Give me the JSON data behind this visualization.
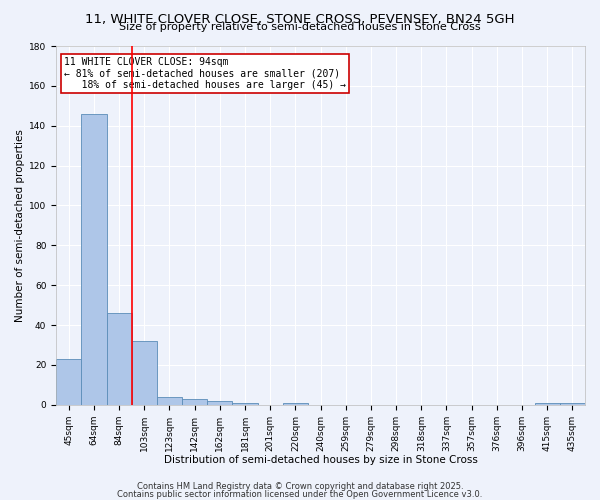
{
  "title": "11, WHITE CLOVER CLOSE, STONE CROSS, PEVENSEY, BN24 5GH",
  "subtitle": "Size of property relative to semi-detached houses in Stone Cross",
  "xlabel": "Distribution of semi-detached houses by size in Stone Cross",
  "ylabel": "Number of semi-detached properties",
  "categories": [
    "45sqm",
    "64sqm",
    "84sqm",
    "103sqm",
    "123sqm",
    "142sqm",
    "162sqm",
    "181sqm",
    "201sqm",
    "220sqm",
    "240sqm",
    "259sqm",
    "279sqm",
    "298sqm",
    "318sqm",
    "337sqm",
    "357sqm",
    "376sqm",
    "396sqm",
    "415sqm",
    "435sqm"
  ],
  "values": [
    23,
    146,
    46,
    32,
    4,
    3,
    2,
    1,
    0,
    1,
    0,
    0,
    0,
    0,
    0,
    0,
    0,
    0,
    0,
    1,
    1
  ],
  "bar_color": "#aec6e8",
  "bar_edge_color": "#5b8db8",
  "property_line_x": 2.5,
  "annotation_line1": "11 WHITE CLOVER CLOSE: 94sqm",
  "annotation_line2": "← 81% of semi-detached houses are smaller (207)",
  "annotation_line3": "   18% of semi-detached houses are larger (45) →",
  "annotation_box_color": "#cc0000",
  "annotation_fill": "#ffffff",
  "ylim": [
    0,
    180
  ],
  "yticks": [
    0,
    20,
    40,
    60,
    80,
    100,
    120,
    140,
    160,
    180
  ],
  "footnote1": "Contains HM Land Registry data © Crown copyright and database right 2025.",
  "footnote2": "Contains public sector information licensed under the Open Government Licence v3.0.",
  "background_color": "#eef2fb",
  "grid_color": "#ffffff",
  "title_fontsize": 9.5,
  "subtitle_fontsize": 8,
  "axis_label_fontsize": 7.5,
  "tick_fontsize": 6.5,
  "annotation_fontsize": 7,
  "footnote_fontsize": 6
}
